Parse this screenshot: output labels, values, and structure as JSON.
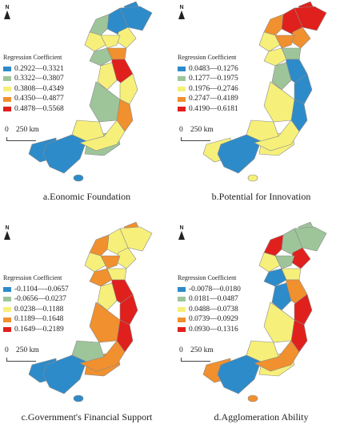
{
  "colors": {
    "c1": "#2e8bc9",
    "c2": "#9ec59a",
    "c3": "#f6f07a",
    "c4": "#f0902e",
    "c5": "#e0201c",
    "border": "#8a8a8a"
  },
  "north_label": "N",
  "scale": {
    "zero": "0",
    "distance": "250 km"
  },
  "panels": [
    {
      "caption": "a.Eonomic Foundation",
      "legend_title": "Regression Coefficient",
      "classes": [
        "0.2922—0.3321",
        "0.3322—0.3807",
        "0.3808—0.4349",
        "0.4350—0.4877",
        "0.4878—0.5568"
      ],
      "region_classes": [
        1,
        1,
        2,
        3,
        3,
        3,
        2,
        4,
        5,
        3,
        4,
        3,
        2,
        3,
        1,
        3
      ],
      "ne_class": 1,
      "se_class": 2,
      "west_class": 1
    },
    {
      "caption": "b.Potential for Innovation",
      "legend_title": "Regression Coefficient",
      "classes": [
        "0.0483—0.1276",
        "0.1277—0.1975",
        "0.1976—0.2746",
        "0.2747—0.4189",
        "0.4190—0.6181"
      ],
      "region_classes": [
        5,
        5,
        4,
        4,
        3,
        4,
        3,
        2,
        1,
        1,
        1,
        2,
        3,
        3,
        1,
        3
      ],
      "ne_class": 5,
      "se_class": 3,
      "west_class": 3
    },
    {
      "caption": "c.Government's Financial Support",
      "legend_title": "Regression Coefficient",
      "classes": [
        "-0.1104—-0.0657",
        "-0.0656—0.0237",
        "0.0238—0.1188",
        "0.1189—0.1648",
        "0.1649—0.2189"
      ],
      "region_classes": [
        3,
        3,
        4,
        3,
        3,
        4,
        4,
        3,
        5,
        5,
        5,
        3,
        4,
        2,
        1,
        4
      ],
      "ne_class": 4,
      "se_class": 4,
      "west_class": 1
    },
    {
      "caption": "d.Agglomeration Ability",
      "legend_title": "Regression Coefficient",
      "classes": [
        "-0.0078—0.0180",
        "0.0181—0.0487",
        "0.0488—0.0738",
        "0.0739—0.0929",
        "0.0930—0.1316"
      ],
      "region_classes": [
        2,
        2,
        5,
        5,
        3,
        2,
        1,
        3,
        4,
        5,
        5,
        1,
        3,
        3,
        1,
        4
      ],
      "ne_class": 2,
      "se_class": 3,
      "west_class": 4
    }
  ]
}
